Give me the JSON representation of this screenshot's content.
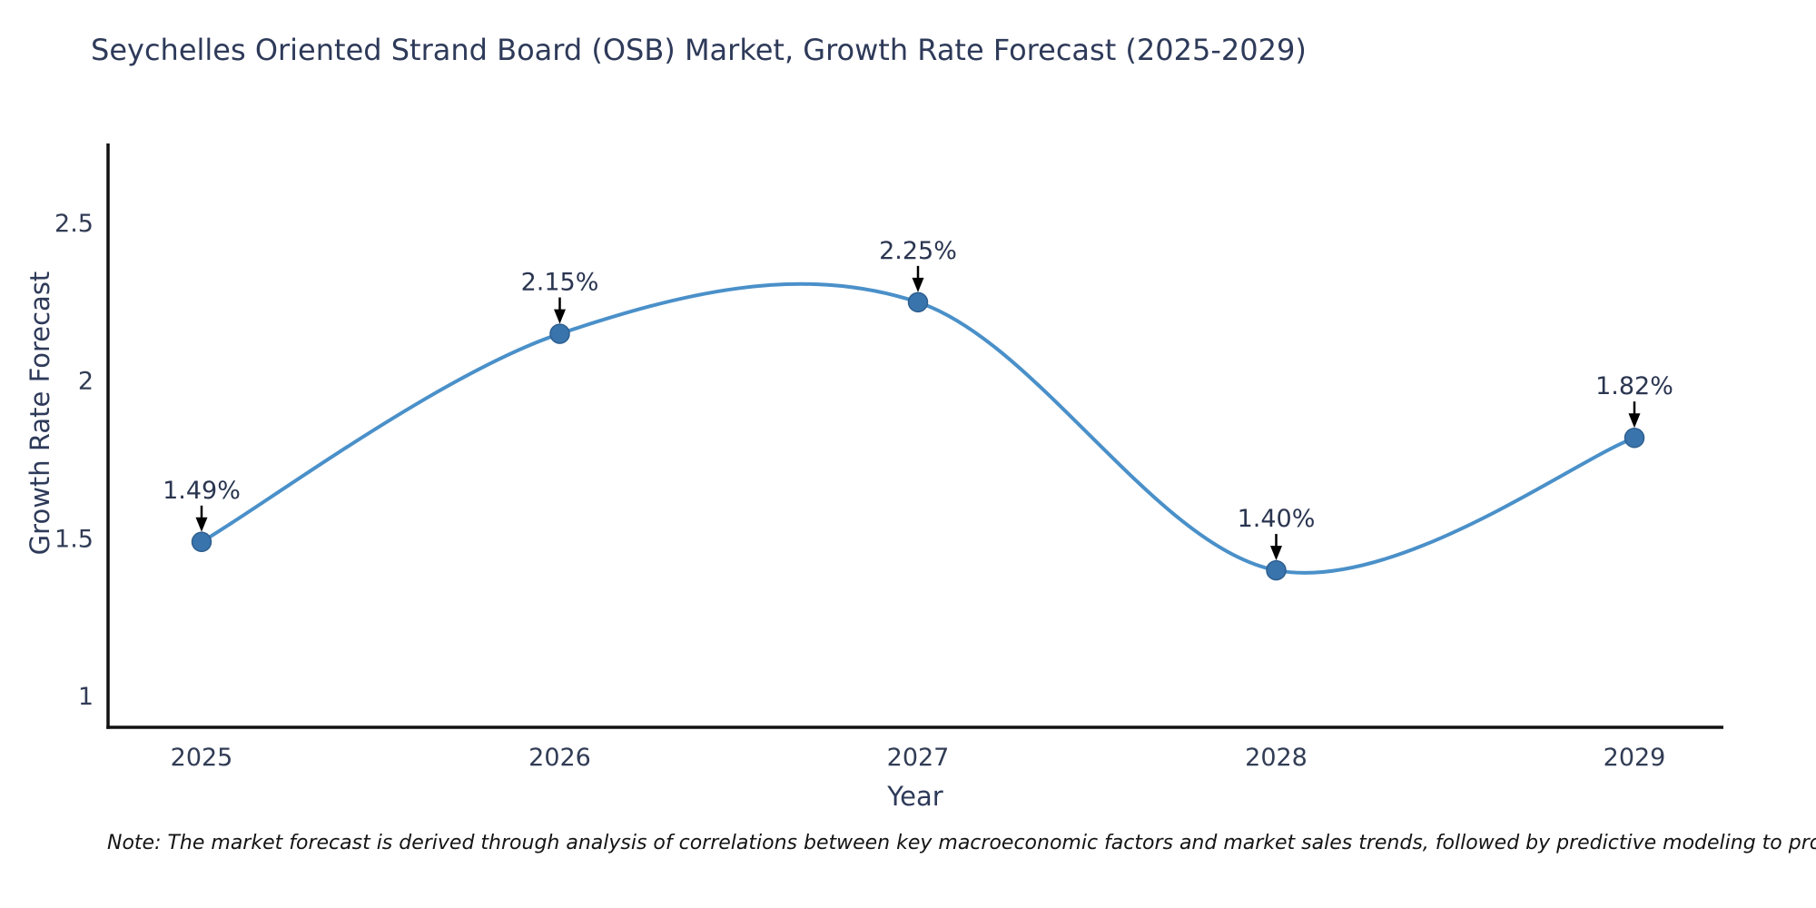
{
  "title": "Seychelles Oriented Strand Board (OSB) Market, Growth Rate Forecast (2025-2029)",
  "note": "Note: The market forecast is derived through analysis of correlations between key macroeconomic factors and market sales trends, followed by predictive modeling to project future sales",
  "chart_data": {
    "type": "line",
    "line_shape": "spline",
    "title": "Seychelles Oriented Strand Board (OSB) Market, Growth Rate Forecast (2025-2029)",
    "xlabel": "Year",
    "ylabel": "Growth Rate Forecast",
    "x": [
      2025,
      2026,
      2027,
      2028,
      2029
    ],
    "values": [
      1.49,
      2.15,
      2.25,
      1.4,
      1.82
    ],
    "point_labels": [
      "1.49%",
      "2.15%",
      "2.25%",
      "1.40%",
      "1.82%"
    ],
    "x_tick_labels": [
      "2025",
      "2026",
      "2027",
      "2028",
      "2029"
    ],
    "y_ticks": [
      2.5,
      2,
      1.5,
      1
    ],
    "y_tick_labels": [
      "2.5",
      "2",
      "1.5",
      "1"
    ],
    "ylim": [
      0.9,
      2.85
    ],
    "grid": false,
    "legend": "none",
    "annotation_style": "down-arrow",
    "colors": {
      "line": "#4a90c9",
      "marker": "#3a74ad",
      "marker_edge": "#2d5f8f",
      "axis": "#111111",
      "text": "#2e3a59",
      "tick_text": "#313c55",
      "annotation_text": "#2a3550",
      "annotation_arrow": "#000000",
      "note_text": "#141414"
    }
  }
}
